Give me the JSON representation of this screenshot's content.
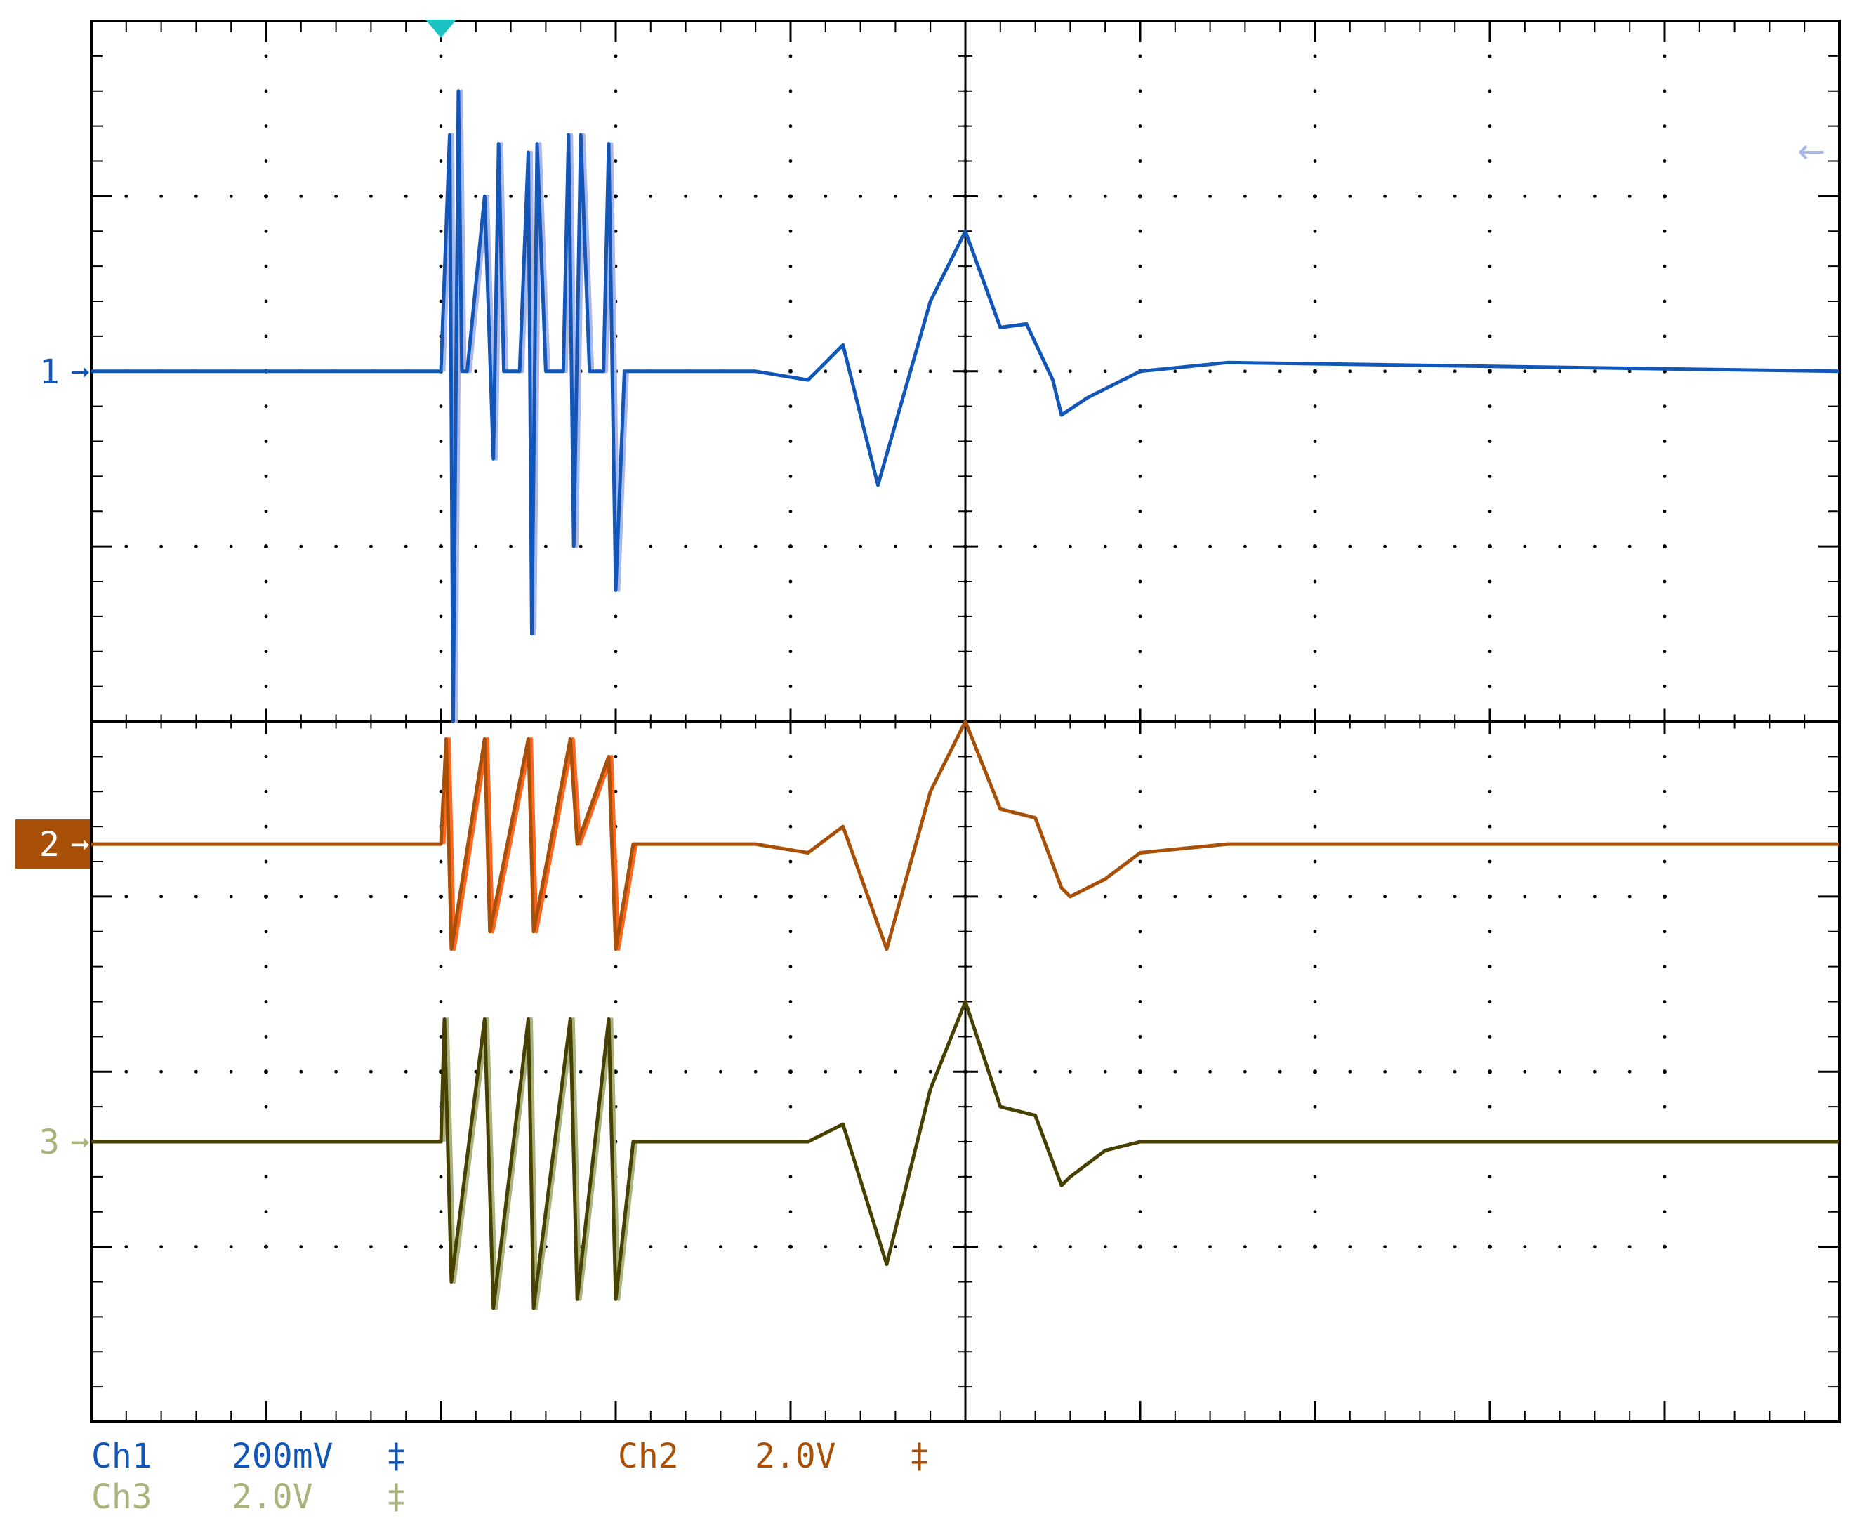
{
  "chart_data": {
    "type": "line",
    "title": "",
    "xlabel": "",
    "ylabel": "",
    "xlim": [
      0,
      10
    ],
    "ylim": [
      -4,
      4
    ],
    "grid": true,
    "grid_divisions": {
      "x": 10,
      "y": 8
    },
    "trigger_marker": {
      "x": 2.0
    },
    "series": [
      {
        "name": "1",
        "color": "#1256b8",
        "burst_color": "#a9b7ea",
        "ground_level": 2.0,
        "x": [
          0,
          2.0,
          2.05,
          2.07,
          2.1,
          2.12,
          2.15,
          2.25,
          2.3,
          2.33,
          2.36,
          2.45,
          2.5,
          2.52,
          2.55,
          2.6,
          2.7,
          2.73,
          2.76,
          2.8,
          2.85,
          2.93,
          2.96,
          3.0,
          3.05,
          3.1,
          3.8,
          4.1,
          4.3,
          4.5,
          4.8,
          5.0,
          5.2,
          5.35,
          5.5,
          5.55,
          5.7,
          6.0,
          6.5,
          10.0
        ],
        "y": [
          2.0,
          2.0,
          3.35,
          0.0,
          3.6,
          2.0,
          2.0,
          3.0,
          1.5,
          3.3,
          2.0,
          2.0,
          3.25,
          0.5,
          3.3,
          2.0,
          2.0,
          3.35,
          1.0,
          3.35,
          2.0,
          2.0,
          3.3,
          0.75,
          2.0,
          2.0,
          2.0,
          1.95,
          2.15,
          1.35,
          2.4,
          2.8,
          2.25,
          2.27,
          1.95,
          1.75,
          1.85,
          2.0,
          2.05,
          2.0
        ]
      },
      {
        "name": "2",
        "color": "#a84f08",
        "burst_color": "#ff6620",
        "ground_level": -0.7,
        "x": [
          0,
          2.0,
          2.03,
          2.06,
          2.25,
          2.28,
          2.5,
          2.53,
          2.74,
          2.78,
          2.96,
          3.0,
          3.1,
          3.8,
          4.1,
          4.3,
          4.55,
          4.8,
          5.0,
          5.2,
          5.4,
          5.55,
          5.6,
          5.8,
          6.0,
          6.5,
          10.0
        ],
        "y": [
          -0.7,
          -0.7,
          -0.1,
          -1.3,
          -0.1,
          -1.2,
          -0.1,
          -1.2,
          -0.1,
          -0.7,
          -0.2,
          -1.3,
          -0.7,
          -0.7,
          -0.75,
          -0.6,
          -1.3,
          -0.4,
          0.0,
          -0.5,
          -0.55,
          -0.95,
          -1.0,
          -0.9,
          -0.75,
          -0.7,
          -0.7
        ]
      },
      {
        "name": "3",
        "color": "#474000",
        "burst_color": "#a8b47c",
        "ground_level": -2.4,
        "x": [
          0,
          2.0,
          2.02,
          2.06,
          2.25,
          2.3,
          2.5,
          2.53,
          2.74,
          2.78,
          2.96,
          3.0,
          3.1,
          3.8,
          4.1,
          4.3,
          4.55,
          4.8,
          5.0,
          5.2,
          5.4,
          5.55,
          5.6,
          5.8,
          6.0,
          6.5,
          10.0
        ],
        "y": [
          -2.4,
          -2.4,
          -1.7,
          -3.2,
          -1.7,
          -3.35,
          -1.7,
          -3.35,
          -1.7,
          -3.3,
          -1.7,
          -3.3,
          -2.4,
          -2.4,
          -2.4,
          -2.3,
          -3.1,
          -2.1,
          -1.6,
          -2.2,
          -2.25,
          -2.65,
          -2.6,
          -2.45,
          -2.4,
          -2.4,
          -2.4
        ]
      }
    ]
  },
  "readouts": {
    "ch1": {
      "label": "Ch1",
      "scale": "200mV",
      "coupling": "‡"
    },
    "ch2": {
      "label": "Ch2",
      "scale": "2.0V",
      "coupling": "‡"
    },
    "ch3": {
      "label": "Ch3",
      "scale": "2.0V",
      "coupling": "‡"
    }
  },
  "markers": {
    "ch1": "1",
    "ch2": "2",
    "ch3": "3"
  },
  "colors": {
    "ch1": "#1256b8",
    "ch2": "#a84f08",
    "ch3": "#a8b47c",
    "trigger": "#1cc2c2",
    "grid": "#000000"
  }
}
